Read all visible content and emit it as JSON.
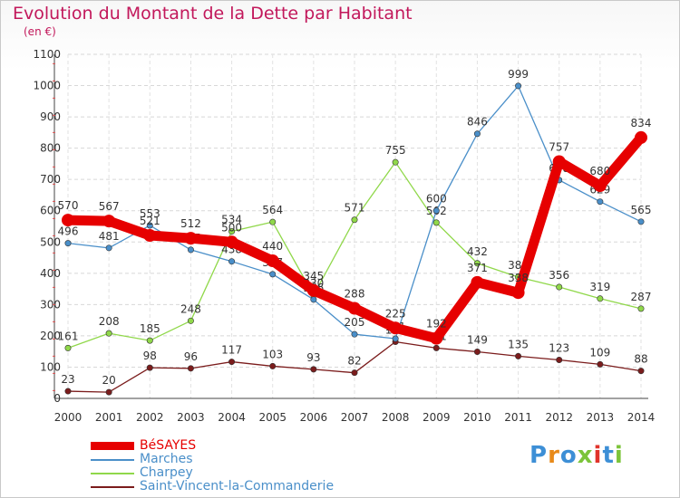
{
  "chart_data": {
    "type": "line",
    "title": "Evolution du Montant de la Dette par Habitant",
    "subtitle": "(en €)",
    "x": [
      "2000",
      "2001",
      "2002",
      "2003",
      "2004",
      "2005",
      "2006",
      "2007",
      "2008",
      "2009",
      "2010",
      "2011",
      "2012",
      "2013",
      "2014"
    ],
    "ylim": [
      0,
      1100
    ],
    "yticks": [
      0,
      100,
      200,
      300,
      400,
      500,
      600,
      700,
      800,
      900,
      1000,
      1100
    ],
    "grid": true,
    "legend_position": "bottom-left",
    "series": [
      {
        "name": "BéSAYES",
        "color": "#e60000",
        "values": [
          570,
          567,
          521,
          512,
          500,
          440,
          345,
          288,
          225,
          192,
          371,
          338,
          757,
          680,
          834
        ],
        "labels": [
          "570",
          "567",
          "521",
          "512",
          "500",
          "440",
          "345",
          "288",
          "225",
          "192",
          "371",
          "338",
          "757",
          "680",
          "834"
        ]
      },
      {
        "name": "Marches",
        "color": "#4a8fc9",
        "values": [
          496,
          481,
          553,
          475,
          438,
          397,
          316,
          205,
          191,
          600,
          846,
          999,
          698,
          629,
          565
        ],
        "labels": [
          "496",
          "481",
          "553",
          "475",
          "438",
          "397",
          "316",
          "205",
          "191",
          "600",
          "846",
          "999",
          "698",
          "629",
          "565"
        ]
      },
      {
        "name": "Charpey",
        "color": "#90d84a",
        "values": [
          161,
          208,
          185,
          248,
          534,
          564,
          330,
          571,
          755,
          562,
          432,
          388,
          356,
          319,
          287
        ],
        "labels": [
          "161",
          "208",
          "185",
          "248",
          "534",
          "564",
          "330",
          "571",
          "755",
          "562",
          "432",
          "388",
          "356",
          "319",
          "287"
        ]
      },
      {
        "name": "Saint-Vincent-la-Commanderie",
        "color": "#7b1c1c",
        "values": [
          23,
          20,
          98,
          96,
          117,
          103,
          93,
          82,
          181,
          161,
          149,
          135,
          123,
          109,
          88
        ],
        "labels": [
          "23",
          "20",
          "98",
          "96",
          "117",
          "103",
          "93",
          "82",
          "181",
          "161",
          "149",
          "135",
          "123",
          "109",
          "88"
        ]
      }
    ]
  },
  "legend": {
    "items": [
      "BéSAYES",
      "Marches",
      "Charpey",
      "Saint-Vincent-la-Commanderie"
    ],
    "colors": [
      "#e60000",
      "#4a8fc9",
      "#90d84a",
      "#7b1c1c"
    ]
  },
  "logo": {
    "text": "Proxiti",
    "letter_colors": [
      "#3d8fd6",
      "#e88a1a",
      "#3d8fd6",
      "#7cc43a",
      "#e0332b",
      "#3d8fd6",
      "#7cc43a"
    ]
  }
}
